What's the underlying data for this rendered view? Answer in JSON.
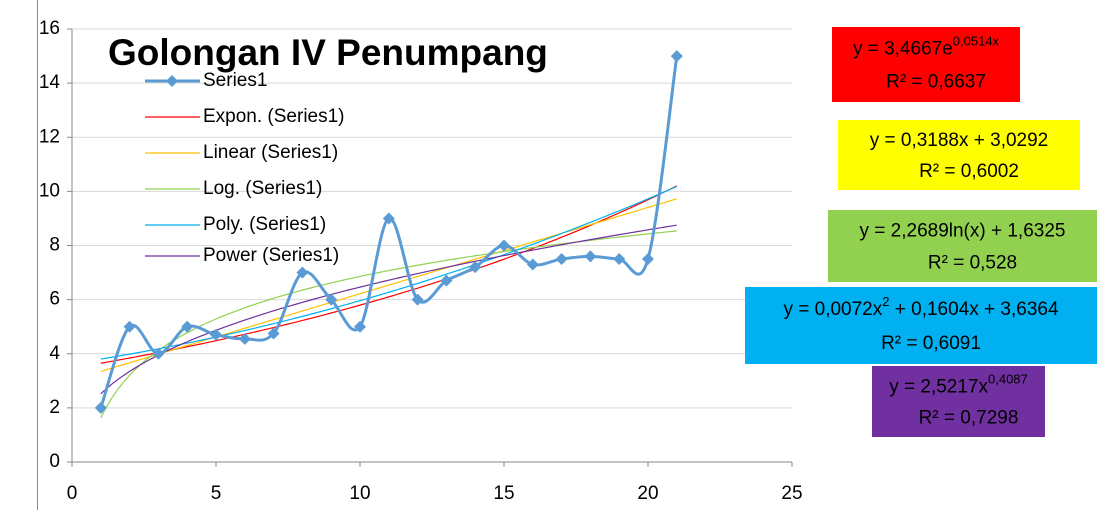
{
  "chart_data": {
    "type": "scatter",
    "title": "Golongan IV Penumpang",
    "xlim": [
      0,
      25
    ],
    "xticks": [
      0,
      5,
      10,
      15,
      20,
      25
    ],
    "ylim": [
      0,
      16
    ],
    "yticks": [
      0,
      2,
      4,
      6,
      8,
      10,
      12,
      14,
      16
    ],
    "grid": true,
    "series": [
      {
        "name": "Series1",
        "color": "#5b9bd5",
        "x": [
          1,
          2,
          3,
          4,
          5,
          6,
          7,
          8,
          9,
          10,
          11,
          12,
          13,
          14,
          15,
          16,
          17,
          18,
          19,
          20,
          21
        ],
        "values": [
          2,
          5,
          4,
          5,
          4.7,
          4.55,
          4.75,
          7,
          6,
          5,
          9,
          6,
          6.7,
          7.2,
          8,
          7.3,
          7.5,
          7.6,
          7.5,
          7.5,
          15
        ]
      }
    ],
    "trendlines": [
      {
        "name": "Expon. (Series1)",
        "kind": "exp",
        "color": "#ff0000",
        "box_color": "#ff0000",
        "coefficients": [
          3.4667,
          0.0514
        ],
        "equation": [
          {
            "text": "y = 3,4667e"
          },
          {
            "text": "0,0514x",
            "sup": true
          }
        ],
        "r_squared": 0.6637,
        "r_squared_label": "R² = 0,6637"
      },
      {
        "name": "Linear (Series1)",
        "kind": "linear",
        "color": "#ffc000",
        "box_color": "#ffff00",
        "coefficients": [
          0.3188,
          3.0292
        ],
        "equation": [
          {
            "text": "y = 0,3188x + 3,0292"
          }
        ],
        "r_squared": 0.6002,
        "r_squared_label": "R² = 0,6002"
      },
      {
        "name": "Log. (Series1)",
        "kind": "log",
        "color": "#92d050",
        "box_color": "#92d050",
        "coefficients": [
          2.2689,
          1.6325
        ],
        "equation": [
          {
            "text": "y = 2,2689ln(x) + 1,6325"
          }
        ],
        "r_squared": 0.528,
        "r_squared_label": "R² = 0,528"
      },
      {
        "name": "Poly. (Series1)",
        "kind": "poly",
        "color": "#00b0f0",
        "box_color": "#00b0f0",
        "coefficients": [
          0.0072,
          0.1604,
          3.6364
        ],
        "equation": [
          {
            "text": "y = 0,0072x"
          },
          {
            "text": "2",
            "sup": true
          },
          {
            "text": " + 0,1604x + 3,6364"
          }
        ],
        "r_squared": 0.6091,
        "r_squared_label": "R² = 0,6091"
      },
      {
        "name": "Power (Series1)",
        "kind": "power",
        "color": "#7030a0",
        "box_color": "#7030a0",
        "coefficients": [
          2.5217,
          0.4087
        ],
        "equation": [
          {
            "text": "y = 2,5217x"
          },
          {
            "text": "0,4087",
            "sup": true
          }
        ],
        "r_squared": 0.7298,
        "r_squared_label": "R² = 0,7298"
      }
    ]
  }
}
